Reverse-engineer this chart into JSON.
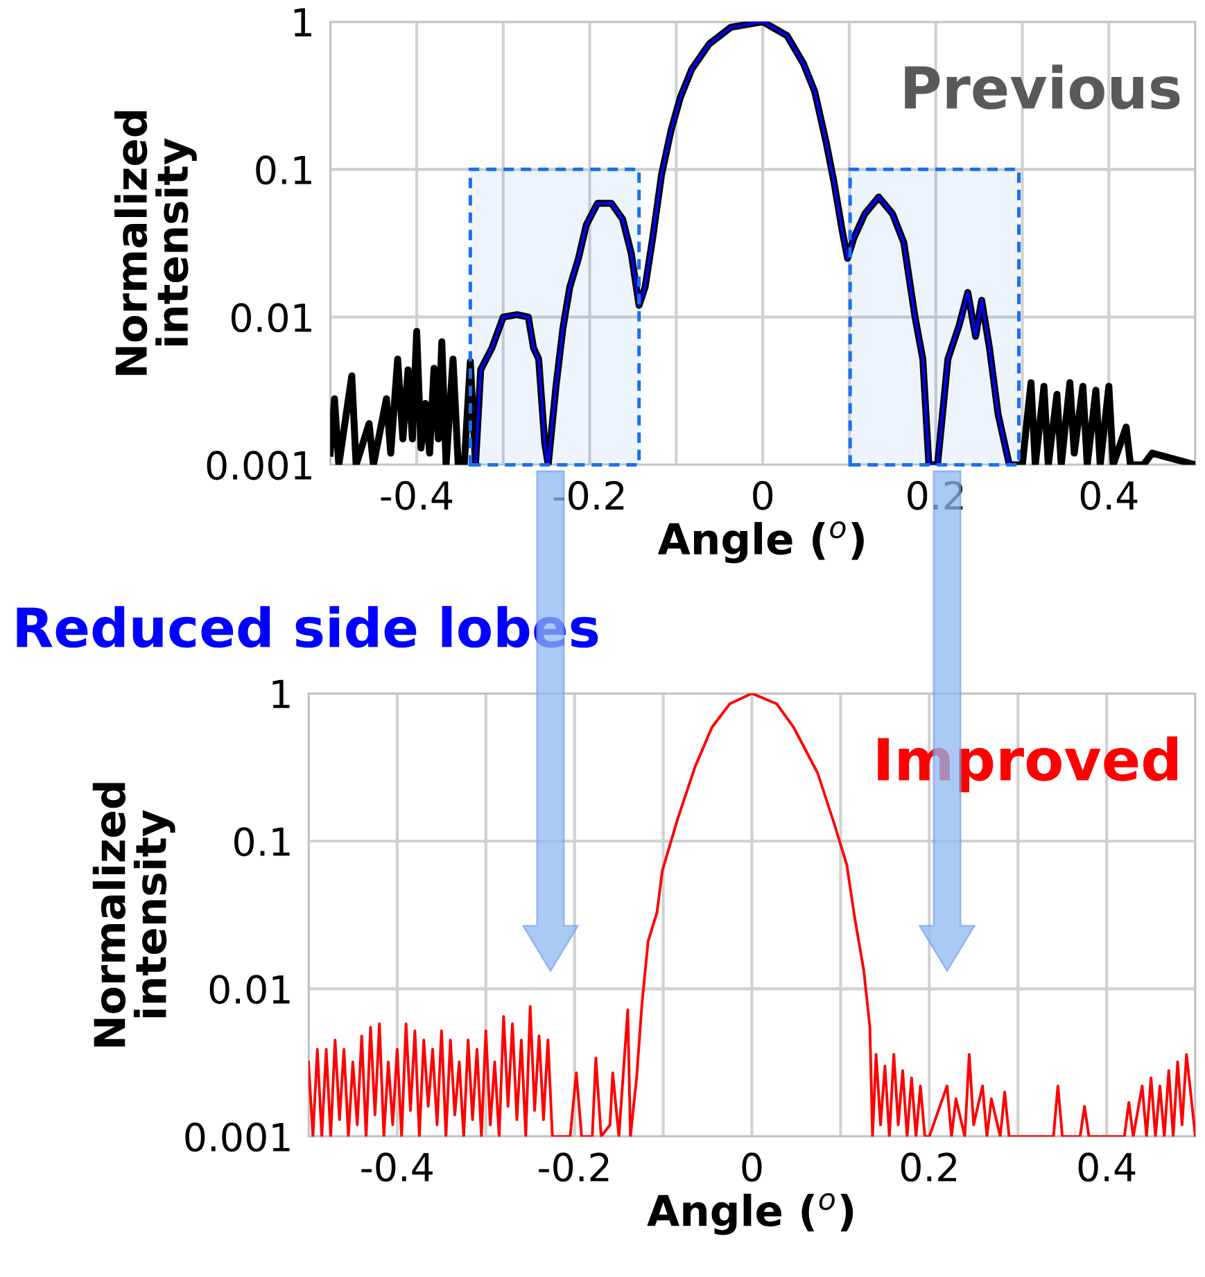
{
  "chart_data": [
    {
      "type": "line",
      "xlabel": "Angle ($^{o}$)",
      "ylabel": "Normalized\nintensity",
      "annotations": [
        "Previous",
        "Reduced side lobes"
      ],
      "log": "y",
      "grid": true,
      "legend": false,
      "xlim": [
        -0.5,
        0.5
      ],
      "ylim": [
        0.001,
        1
      ],
      "xticks": [
        {
          "value": -0.5,
          "label": null
        },
        -0.4,
        {
          "value": -0.3,
          "label": null
        },
        -0.2,
        {
          "value": -0.1,
          "label": null
        },
        0,
        {
          "value": 0.1,
          "label": null
        },
        0.2,
        {
          "value": 0.3,
          "label": null
        },
        0.4,
        {
          "value": 0.5,
          "label": null
        }
      ],
      "yticks": [
        0.001,
        0.01,
        0.1,
        1
      ],
      "bands": [
        {
          "axis": "x",
          "from": -0.338,
          "to": -0.143,
          "color": "#1a6ff0"
        },
        {
          "axis": "x",
          "from": 0.101,
          "to": 0.296,
          "color": "#1a6ff0"
        }
      ],
      "series": [
        {
          "color": "#000000",
          "x": [
            -0.5,
            -0.495,
            -0.49,
            -0.475,
            -0.47,
            -0.455,
            -0.45,
            -0.435,
            -0.43,
            -0.422,
            -0.416,
            -0.41,
            -0.405,
            -0.4,
            -0.395,
            -0.39,
            -0.385,
            -0.38,
            -0.375,
            -0.371,
            -0.366,
            -0.358,
            -0.352,
            -0.345,
            -0.338,
            -0.332,
            -0.326,
            -0.313,
            -0.3,
            -0.284,
            -0.271,
            -0.265,
            -0.259,
            -0.252,
            -0.248,
            -0.239,
            -0.231,
            -0.223,
            -0.213,
            -0.204,
            -0.191,
            -0.175,
            -0.162,
            -0.152,
            -0.143,
            -0.136,
            -0.127,
            -0.117,
            -0.106,
            -0.095,
            -0.082,
            -0.062,
            -0.037,
            0,
            0.028,
            0.047,
            0.06,
            0.073,
            0.082,
            0.092,
            0.098,
            0.105,
            0.118,
            0.134,
            0.15,
            0.163,
            0.176,
            0.185,
            0.192,
            0.202,
            0.214,
            0.227,
            0.237,
            0.246,
            0.253,
            0.262,
            0.272,
            0.285,
            0.3,
            0.31,
            0.315,
            0.325,
            0.33,
            0.34,
            0.345,
            0.355,
            0.36,
            0.37,
            0.375,
            0.385,
            0.39,
            0.4,
            0.405,
            0.42,
            0.425,
            0.44,
            0.45,
            0.5
          ],
          "values": [
            0.0012,
            0.0028,
            0.001,
            0.004,
            0.001,
            0.0019,
            0.001,
            0.0028,
            0.0012,
            0.0052,
            0.0015,
            0.0044,
            0.0015,
            0.008,
            0.0013,
            0.0026,
            0.0012,
            0.0045,
            0.0015,
            0.0068,
            0.001,
            0.0052,
            0.001,
            0.001,
            0.005,
            0.001,
            0.0044,
            0.0062,
            0.01,
            0.0104,
            0.01,
            0.0062,
            0.0052,
            0.0014,
            0.001,
            0.0034,
            0.0084,
            0.016,
            0.025,
            0.042,
            0.059,
            0.059,
            0.046,
            0.027,
            0.012,
            0.016,
            0.035,
            0.092,
            0.184,
            0.31,
            0.478,
            0.706,
            0.916,
            1,
            0.805,
            0.521,
            0.337,
            0.155,
            0.084,
            0.038,
            0.025,
            0.034,
            0.05,
            0.065,
            0.05,
            0.032,
            0.01,
            0.0052,
            0.001,
            0.001,
            0.0052,
            0.0088,
            0.0147,
            0.0074,
            0.013,
            0.0062,
            0.0022,
            0.001,
            0.001,
            0.0036,
            0.001,
            0.0034,
            0.001,
            0.003,
            0.001,
            0.0036,
            0.0012,
            0.0034,
            0.001,
            0.0032,
            0.001,
            0.0034,
            0.001,
            0.0018,
            0.001,
            0.001,
            0.0012,
            0.001
          ]
        },
        {
          "color": "#0000ff",
          "x": [
            -0.332,
            -0.326,
            -0.313,
            -0.3,
            -0.284,
            -0.271,
            -0.265,
            -0.259,
            -0.252,
            -0.248,
            -0.239,
            -0.231,
            -0.223,
            -0.213,
            -0.204,
            -0.191,
            -0.175,
            -0.162,
            -0.152,
            -0.143,
            -0.136,
            -0.127,
            -0.117,
            -0.106,
            -0.095,
            -0.082,
            -0.062,
            -0.037,
            0,
            0.028,
            0.047,
            0.06,
            0.073,
            0.082,
            0.092,
            0.098,
            0.105,
            0.118,
            0.134,
            0.15,
            0.163,
            0.176,
            0.185,
            0.192,
            0.202,
            0.214,
            0.227,
            0.237,
            0.246,
            0.253,
            0.262,
            0.272,
            0.285
          ],
          "values": [
            0.001,
            0.0044,
            0.0062,
            0.01,
            0.0104,
            0.01,
            0.0062,
            0.0052,
            0.0014,
            0.001,
            0.0034,
            0.0084,
            0.016,
            0.025,
            0.042,
            0.059,
            0.059,
            0.046,
            0.027,
            0.012,
            0.016,
            0.035,
            0.092,
            0.184,
            0.31,
            0.478,
            0.706,
            0.916,
            1,
            0.805,
            0.521,
            0.337,
            0.155,
            0.084,
            0.038,
            0.025,
            0.034,
            0.05,
            0.065,
            0.05,
            0.032,
            0.01,
            0.0052,
            0.001,
            0.001,
            0.0052,
            0.0088,
            0.0147,
            0.0074,
            0.013,
            0.0062,
            0.0022,
            0.001
          ]
        }
      ]
    },
    {
      "type": "line",
      "xlabel": "Angle ($^{o}$)",
      "ylabel": "Normalized\nintensity",
      "annotations": [
        "Improved"
      ],
      "log": "y",
      "grid": true,
      "legend": false,
      "xlim": [
        -0.5,
        0.5
      ],
      "ylim": [
        0.001,
        1
      ],
      "xticks": [
        {
          "value": -0.5,
          "label": null
        },
        -0.4,
        {
          "value": -0.3,
          "label": null
        },
        -0.2,
        {
          "value": -0.1,
          "label": null
        },
        0,
        {
          "value": 0.1,
          "label": null
        },
        0.2,
        {
          "value": 0.3,
          "label": null
        },
        0.4,
        {
          "value": 0.5,
          "label": null
        }
      ],
      "yticks": [
        0.001,
        0.01,
        0.1,
        1
      ],
      "series": [
        {
          "color": "#ff0000",
          "x": [
            -0.5,
            -0.495,
            -0.49,
            -0.485,
            -0.48,
            -0.475,
            -0.47,
            -0.465,
            -0.46,
            -0.455,
            -0.45,
            -0.445,
            -0.44,
            -0.435,
            -0.43,
            -0.425,
            -0.42,
            -0.415,
            -0.41,
            -0.405,
            -0.4,
            -0.395,
            -0.39,
            -0.385,
            -0.38,
            -0.375,
            -0.37,
            -0.365,
            -0.36,
            -0.355,
            -0.35,
            -0.345,
            -0.34,
            -0.335,
            -0.33,
            -0.325,
            -0.32,
            -0.315,
            -0.31,
            -0.305,
            -0.3,
            -0.295,
            -0.29,
            -0.285,
            -0.28,
            -0.275,
            -0.27,
            -0.265,
            -0.26,
            -0.255,
            -0.25,
            -0.245,
            -0.24,
            -0.235,
            -0.23,
            -0.225,
            -0.22,
            -0.205,
            -0.198,
            -0.192,
            -0.18,
            -0.176,
            -0.17,
            -0.16,
            -0.157,
            -0.15,
            -0.14,
            -0.137,
            -0.13,
            -0.124,
            -0.117,
            -0.107,
            -0.101,
            -0.084,
            -0.064,
            -0.045,
            -0.025,
            0,
            0.028,
            0.047,
            0.074,
            0.093,
            0.107,
            0.116,
            0.126,
            0.133,
            0.136,
            0.14,
            0.145,
            0.15,
            0.155,
            0.16,
            0.165,
            0.17,
            0.175,
            0.18,
            0.185,
            0.19,
            0.195,
            0.2,
            0.22,
            0.225,
            0.23,
            0.24,
            0.245,
            0.25,
            0.26,
            0.265,
            0.27,
            0.28,
            0.285,
            0.29,
            0.3,
            0.34,
            0.345,
            0.35,
            0.37,
            0.375,
            0.38,
            0.42,
            0.425,
            0.43,
            0.44,
            0.445,
            0.45,
            0.455,
            0.46,
            0.465,
            0.47,
            0.475,
            0.48,
            0.485,
            0.49,
            0.5
          ],
          "values": [
            0.0032,
            0.001,
            0.0039,
            0.001,
            0.0039,
            0.001,
            0.0045,
            0.0013,
            0.0039,
            0.001,
            0.0032,
            0.0012,
            0.0048,
            0.001,
            0.0055,
            0.0014,
            0.0058,
            0.001,
            0.0032,
            0.0012,
            0.0039,
            0.001,
            0.0058,
            0.0015,
            0.0052,
            0.001,
            0.0045,
            0.0016,
            0.0039,
            0.0012,
            0.0052,
            0.001,
            0.0045,
            0.0014,
            0.0032,
            0.001,
            0.0045,
            0.0013,
            0.0039,
            0.001,
            0.0052,
            0.0012,
            0.0032,
            0.001,
            0.0065,
            0.0016,
            0.0058,
            0.0013,
            0.0045,
            0.001,
            0.0076,
            0.0015,
            0.0048,
            0.0013,
            0.0045,
            0.001,
            0.001,
            0.001,
            0.0027,
            0.001,
            0.001,
            0.0034,
            0.001,
            0.0012,
            0.0027,
            0.001,
            0.0072,
            0.001,
            0.0025,
            0.0079,
            0.021,
            0.033,
            0.063,
            0.14,
            0.32,
            0.59,
            0.85,
            1,
            0.85,
            0.59,
            0.29,
            0.13,
            0.069,
            0.03,
            0.0135,
            0.0055,
            0.001,
            0.0036,
            0.0012,
            0.003,
            0.001,
            0.0036,
            0.0012,
            0.0028,
            0.001,
            0.0025,
            0.001,
            0.0022,
            0.001,
            0.001,
            0.0022,
            0.001,
            0.0018,
            0.001,
            0.0036,
            0.0012,
            0.0022,
            0.001,
            0.0018,
            0.001,
            0.002,
            0.001,
            0.001,
            0.001,
            0.0022,
            0.001,
            0.001,
            0.0016,
            0.001,
            0.001,
            0.0017,
            0.001,
            0.0022,
            0.001,
            0.0025,
            0.001,
            0.0022,
            0.001,
            0.0028,
            0.001,
            0.0032,
            0.0012,
            0.0036,
            0.001
          ]
        }
      ]
    }
  ]
}
